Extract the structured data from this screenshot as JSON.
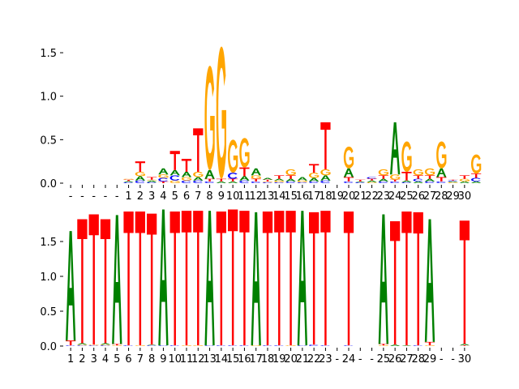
{
  "chart_data": [
    {
      "type": "sequence-logo",
      "title": "",
      "xlabel": "",
      "ylabel": "",
      "ylim": [
        0,
        1.6
      ],
      "yticks": [
        "0.0",
        "0.5",
        "1.0",
        "1.5"
      ],
      "ytick_values": [
        0,
        0.5,
        1.0,
        1.5
      ],
      "xtick_labels": [
        "-",
        "-",
        "-",
        "-",
        "-",
        "1",
        "2",
        "3",
        "4",
        "5",
        "6",
        "7",
        "8",
        "9",
        "10",
        "11",
        "12",
        "13",
        "14",
        "15",
        "16",
        "17",
        "18",
        "19",
        "20",
        "21",
        "22",
        "23",
        "24",
        "25",
        "26",
        "27",
        "28",
        "29",
        "30"
      ],
      "colors": {
        "A": "#008000",
        "C": "#0000ff",
        "G": "#ffa500",
        "T": "#ff0000"
      },
      "positions": [
        [],
        [],
        [],
        [],
        [],
        [
          [
            "C",
            0.01
          ],
          [
            "A",
            0.015
          ],
          [
            "T",
            0.015
          ],
          [
            "G",
            0.01
          ]
        ],
        [
          [
            "C",
            0.03
          ],
          [
            "A",
            0.05
          ],
          [
            "G",
            0.05
          ],
          [
            "T",
            0.12
          ]
        ],
        [
          [
            "C",
            0.01
          ],
          [
            "A",
            0.02
          ],
          [
            "G",
            0.01
          ],
          [
            "T",
            0.03
          ]
        ],
        [
          [
            "T",
            0.02
          ],
          [
            "C",
            0.04
          ],
          [
            "G",
            0.04
          ],
          [
            "A",
            0.07
          ]
        ],
        [
          [
            "G",
            0.03
          ],
          [
            "C",
            0.06
          ],
          [
            "A",
            0.06
          ],
          [
            "T",
            0.22
          ]
        ],
        [
          [
            "C",
            0.03
          ],
          [
            "G",
            0.04
          ],
          [
            "A",
            0.06
          ],
          [
            "T",
            0.15
          ]
        ],
        [
          [
            "C",
            0.03
          ],
          [
            "A",
            0.04
          ],
          [
            "G",
            0.06
          ],
          [
            "T",
            0.5
          ]
        ],
        [
          [
            "C",
            0.02
          ],
          [
            "T",
            0.03
          ],
          [
            "A",
            0.1
          ],
          [
            "G",
            1.2
          ]
        ],
        [
          [
            "A",
            0.02
          ],
          [
            "T",
            0.03
          ],
          [
            "G",
            1.52
          ]
        ],
        [
          [
            "A",
            0.02
          ],
          [
            "T",
            0.03
          ],
          [
            "C",
            0.07
          ],
          [
            "G",
            0.38
          ]
        ],
        [
          [
            "C",
            0.03
          ],
          [
            "A",
            0.05
          ],
          [
            "T",
            0.1
          ],
          [
            "G",
            0.34
          ]
        ],
        [
          [
            "C",
            0.02
          ],
          [
            "T",
            0.03
          ],
          [
            "G",
            0.04
          ],
          [
            "A",
            0.08
          ]
        ],
        [
          [
            "C",
            0.01
          ],
          [
            "G",
            0.01
          ],
          [
            "T",
            0.02
          ],
          [
            "A",
            0.02
          ]
        ],
        [
          [
            "C",
            0.01
          ],
          [
            "G",
            0.02
          ],
          [
            "A",
            0.02
          ],
          [
            "T",
            0.04
          ]
        ],
        [
          [
            "C",
            0.02
          ],
          [
            "A",
            0.03
          ],
          [
            "T",
            0.04
          ],
          [
            "G",
            0.07
          ]
        ],
        [
          [
            "C",
            0.01
          ],
          [
            "G",
            0.02
          ],
          [
            "A",
            0.04
          ]
        ],
        [
          [
            "C",
            0.02
          ],
          [
            "A",
            0.04
          ],
          [
            "G",
            0.06
          ],
          [
            "T",
            0.1
          ]
        ],
        [
          [
            "C",
            0.03
          ],
          [
            "A",
            0.06
          ],
          [
            "G",
            0.07
          ],
          [
            "T",
            0.54
          ]
        ],
        [],
        [
          [
            "C",
            0.02
          ],
          [
            "T",
            0.05
          ],
          [
            "A",
            0.1
          ],
          [
            "G",
            0.25
          ]
        ],
        [
          [
            "C",
            0.01
          ],
          [
            "A",
            0.01
          ],
          [
            "T",
            0.02
          ]
        ],
        [
          [
            "G",
            0.01
          ],
          [
            "A",
            0.02
          ],
          [
            "T",
            0.02
          ],
          [
            "C",
            0.02
          ]
        ],
        [
          [
            "C",
            0.02
          ],
          [
            "A",
            0.03
          ],
          [
            "T",
            0.04
          ],
          [
            "G",
            0.07
          ]
        ],
        [
          [
            "C",
            0.02
          ],
          [
            "T",
            0.02
          ],
          [
            "G",
            0.06
          ],
          [
            "A",
            0.6
          ]
        ],
        [
          [
            "C",
            0.01
          ],
          [
            "A",
            0.02
          ],
          [
            "T",
            0.1
          ],
          [
            "G",
            0.35
          ]
        ],
        [
          [
            "A",
            0.02
          ],
          [
            "C",
            0.03
          ],
          [
            "T",
            0.04
          ],
          [
            "G",
            0.07
          ]
        ],
        [
          [
            "C",
            0.02
          ],
          [
            "A",
            0.03
          ],
          [
            "T",
            0.04
          ],
          [
            "G",
            0.08
          ]
        ],
        [
          [
            "C",
            0.02
          ],
          [
            "T",
            0.05
          ],
          [
            "A",
            0.1
          ],
          [
            "G",
            0.31
          ]
        ],
        [
          [
            "G",
            0.01
          ],
          [
            "A",
            0.01
          ],
          [
            "C",
            0.01
          ],
          [
            "T",
            0.01
          ]
        ],
        [
          [
            "A",
            0.02
          ],
          [
            "G",
            0.03
          ],
          [
            "T",
            0.04
          ]
        ],
        [
          [
            "A",
            0.02
          ],
          [
            "C",
            0.04
          ],
          [
            "T",
            0.05
          ],
          [
            "G",
            0.22
          ]
        ]
      ]
    },
    {
      "type": "sequence-logo",
      "title": "",
      "xlabel": "",
      "ylabel": "",
      "ylim": [
        0,
        1.95
      ],
      "yticks": [
        "0.0",
        "0.5",
        "1.0",
        "1.5"
      ],
      "ytick_values": [
        0,
        0.5,
        1.0,
        1.5
      ],
      "xtick_labels": [
        "1",
        "2",
        "3",
        "4",
        "5",
        "6",
        "7",
        "8",
        "9",
        "10",
        "11",
        "12",
        "13",
        "14",
        "15",
        "16",
        "17",
        "18",
        "19",
        "20",
        "21",
        "22",
        "23",
        "-",
        "24",
        "-",
        "-",
        "25",
        "26",
        "27",
        "28",
        "29",
        "-",
        "-",
        "30"
      ],
      "colors": {
        "A": "#008000",
        "C": "#0000ff",
        "G": "#ffa500",
        "T": "#ff0000"
      },
      "positions": [
        [
          [
            "C",
            0.01
          ],
          [
            "T",
            0.07
          ],
          [
            "A",
            1.57
          ]
        ],
        [
          [
            "C",
            0.01
          ],
          [
            "G",
            0.01
          ],
          [
            "A",
            0.02
          ],
          [
            "T",
            1.78
          ]
        ],
        [
          [
            "C",
            0.01
          ],
          [
            "G",
            0.01
          ],
          [
            "T",
            1.87
          ]
        ],
        [
          [
            "C",
            0.01
          ],
          [
            "G",
            0.01
          ],
          [
            "A",
            0.02
          ],
          [
            "T",
            1.78
          ]
        ],
        [
          [
            "G",
            0.01
          ],
          [
            "T",
            0.02
          ],
          [
            "A",
            1.85
          ]
        ],
        [
          [
            "C",
            0.01
          ],
          [
            "T",
            1.92
          ]
        ],
        [
          [
            "G",
            0.01
          ],
          [
            "T",
            1.92
          ]
        ],
        [
          [
            "C",
            0.01
          ],
          [
            "A",
            0.01
          ],
          [
            "T",
            1.88
          ]
        ],
        [
          [
            "C",
            0.01
          ],
          [
            "A",
            1.95
          ]
        ],
        [
          [
            "C",
            0.01
          ],
          [
            "T",
            1.92
          ]
        ],
        [
          [
            "G",
            0.01
          ],
          [
            "T",
            1.93
          ]
        ],
        [
          [
            "G",
            0.01
          ],
          [
            "T",
            1.93
          ]
        ],
        [
          [
            "C",
            0.01
          ],
          [
            "A",
            1.93
          ]
        ],
        [
          [
            "C",
            0.01
          ],
          [
            "T",
            1.92
          ]
        ],
        [
          [
            "C",
            0.01
          ],
          [
            "T",
            1.95
          ]
        ],
        [
          [
            "C",
            0.01
          ],
          [
            "T",
            1.93
          ]
        ],
        [
          [
            "G",
            0.01
          ],
          [
            "A",
            1.91
          ]
        ],
        [
          [
            "C",
            0.01
          ],
          [
            "T",
            1.92
          ]
        ],
        [
          [
            "C",
            0.01
          ],
          [
            "T",
            1.93
          ]
        ],
        [
          [
            "G",
            0.01
          ],
          [
            "T",
            1.93
          ]
        ],
        [
          [
            "C",
            0.01
          ],
          [
            "A",
            1.93
          ]
        ],
        [
          [
            "C",
            0.02
          ],
          [
            "T",
            1.9
          ]
        ],
        [
          [
            "C",
            0.01
          ],
          [
            "T",
            1.93
          ]
        ],
        [],
        [
          [
            "C",
            0.01
          ],
          [
            "T",
            1.92
          ]
        ],
        [],
        [],
        [
          [
            "G",
            0.01
          ],
          [
            "T",
            0.02
          ],
          [
            "A",
            1.86
          ]
        ],
        [
          [
            "A",
            0.02
          ],
          [
            "T",
            1.77
          ]
        ],
        [
          [
            "A",
            0.01
          ],
          [
            "T",
            1.92
          ]
        ],
        [
          [
            "C",
            0.01
          ],
          [
            "T",
            1.91
          ]
        ],
        [
          [
            "G",
            0.01
          ],
          [
            "T",
            0.05
          ],
          [
            "A",
            1.76
          ]
        ],
        [],
        [],
        [
          [
            "T",
            0.01
          ],
          [
            "A",
            0.02
          ],
          [
            "T",
            1.77
          ]
        ]
      ]
    }
  ]
}
